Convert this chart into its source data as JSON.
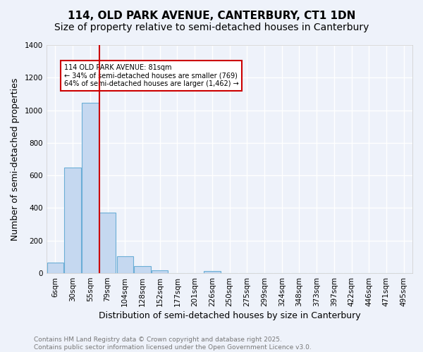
{
  "title1": "114, OLD PARK AVENUE, CANTERBURY, CT1 1DN",
  "title2": "Size of property relative to semi-detached houses in Canterbury",
  "xlabel": "Distribution of semi-detached houses by size in Canterbury",
  "ylabel": "Number of semi-detached properties",
  "bin_labels": [
    "6sqm",
    "30sqm",
    "55sqm",
    "79sqm",
    "104sqm",
    "128sqm",
    "152sqm",
    "177sqm",
    "201sqm",
    "226sqm",
    "250sqm",
    "275sqm",
    "299sqm",
    "324sqm",
    "348sqm",
    "373sqm",
    "397sqm",
    "422sqm",
    "446sqm",
    "471sqm",
    "495sqm"
  ],
  "bar_values": [
    65,
    650,
    1045,
    370,
    105,
    42,
    18,
    0,
    0,
    12,
    0,
    0,
    0,
    0,
    0,
    0,
    0,
    0,
    0,
    0,
    0
  ],
  "bar_color": "#c5d8f0",
  "bar_edge_color": "#6baed6",
  "background_color": "#eef2fa",
  "grid_color": "#ffffff",
  "red_line_index": 3,
  "annotation_text": "114 OLD PARK AVENUE: 81sqm\n← 34% of semi-detached houses are smaller (769)\n64% of semi-detached houses are larger (1,462) →",
  "annotation_box_color": "#ffffff",
  "annotation_text_color": "#000000",
  "red_line_color": "#cc0000",
  "ylim": [
    0,
    1400
  ],
  "yticks": [
    0,
    200,
    400,
    600,
    800,
    1000,
    1200,
    1400
  ],
  "footer_text": "Contains HM Land Registry data © Crown copyright and database right 2025.\nContains public sector information licensed under the Open Government Licence v3.0.",
  "title_fontsize": 11,
  "subtitle_fontsize": 10,
  "axis_label_fontsize": 9,
  "tick_fontsize": 7.5,
  "annotation_fontsize": 7,
  "footer_fontsize": 6.5
}
